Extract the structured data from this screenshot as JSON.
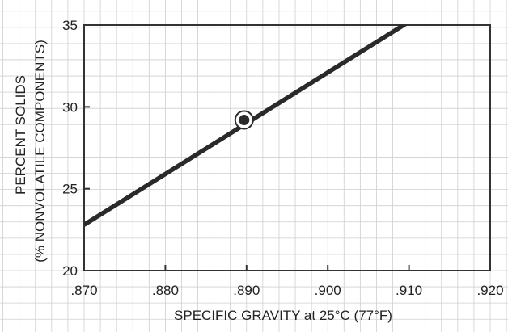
{
  "chart_data": {
    "type": "line",
    "title": "",
    "xlabel": "SPECIFIC GRAVITY at 25°C (77°F)",
    "ylabel_line1": "PERCENT SOLIDS",
    "ylabel_line2": "(% NONVOLATILE COMPONENTS)",
    "xlim": [
      0.87,
      0.92
    ],
    "ylim": [
      20,
      35
    ],
    "x_ticks": [
      ".870",
      ".880",
      ".890",
      ".900",
      ".910",
      ".920"
    ],
    "y_ticks": [
      "20",
      "25",
      "30",
      "35"
    ],
    "grid": true,
    "series": [
      {
        "x": [
          0.87,
          0.91
        ],
        "y": [
          22.8,
          35.2
        ]
      }
    ],
    "highlight_point": {
      "x": 0.8897,
      "y": 29.2
    },
    "colors": {
      "line": "#2a2a2a",
      "grid": "#cfcfcf",
      "axis": "#333333"
    }
  }
}
